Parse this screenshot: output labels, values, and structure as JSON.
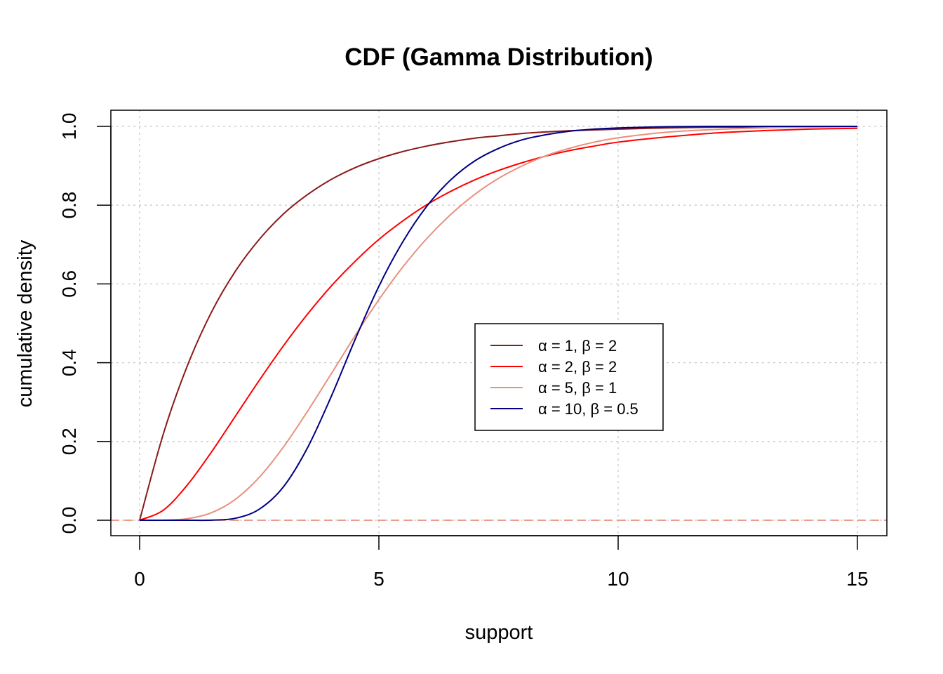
{
  "chart_data": {
    "type": "line",
    "title": "CDF (Gamma Distribution)",
    "xlabel": "support",
    "ylabel": "cumulative density",
    "xlim": [
      0,
      15
    ],
    "ylim": [
      0,
      1
    ],
    "x_ticks": [
      0,
      5,
      10,
      15
    ],
    "y_ticks": [
      0.0,
      0.2,
      0.4,
      0.6,
      0.8,
      1.0
    ],
    "x_tick_labels": [
      "0",
      "5",
      "10",
      "15"
    ],
    "y_tick_labels": [
      "0.0",
      "0.2",
      "0.4",
      "0.6",
      "0.8",
      "1.0"
    ],
    "grid": true,
    "legend_position": "center-right",
    "reference_line": {
      "y": 0,
      "style": "dashed",
      "color": "#E8907E"
    },
    "x": [
      0,
      0.5,
      1,
      1.5,
      2,
      2.5,
      3,
      3.5,
      4,
      4.5,
      5,
      5.5,
      6,
      6.5,
      7,
      7.5,
      8,
      8.5,
      9,
      9.5,
      10,
      11,
      12,
      13,
      14,
      15
    ],
    "series": [
      {
        "name": "α = 1, β = 2",
        "color": "#8B1A1A",
        "values": [
          0,
          0.221,
          0.393,
          0.528,
          0.632,
          0.713,
          0.777,
          0.826,
          0.865,
          0.895,
          0.918,
          0.936,
          0.95,
          0.961,
          0.97,
          0.976,
          0.982,
          0.986,
          0.989,
          0.991,
          0.993,
          0.996,
          0.998,
          0.998,
          0.999,
          0.999
        ]
      },
      {
        "name": "α = 2, β = 2",
        "color": "#FF0000",
        "values": [
          0,
          0.026,
          0.09,
          0.173,
          0.264,
          0.355,
          0.442,
          0.522,
          0.594,
          0.657,
          0.713,
          0.76,
          0.801,
          0.835,
          0.864,
          0.888,
          0.908,
          0.925,
          0.939,
          0.95,
          0.96,
          0.973,
          0.983,
          0.989,
          0.993,
          0.995
        ]
      },
      {
        "name": "α = 5, β = 1",
        "color": "#E8907E",
        "values": [
          0,
          0.0002,
          0.004,
          0.019,
          0.053,
          0.109,
          0.185,
          0.275,
          0.371,
          0.468,
          0.56,
          0.643,
          0.715,
          0.776,
          0.827,
          0.868,
          0.9,
          0.926,
          0.945,
          0.96,
          0.971,
          0.985,
          0.992,
          0.996,
          0.998,
          0.999
        ]
      },
      {
        "name": "α = 10, β = 0.5",
        "color": "#000080",
        "values": [
          0,
          0.0,
          1e-05,
          0.0003,
          0.005,
          0.028,
          0.084,
          0.182,
          0.313,
          0.458,
          0.594,
          0.707,
          0.797,
          0.864,
          0.912,
          0.944,
          0.966,
          0.979,
          0.988,
          0.993,
          0.996,
          0.999,
          1.0,
          1.0,
          1.0,
          1.0
        ]
      }
    ]
  }
}
